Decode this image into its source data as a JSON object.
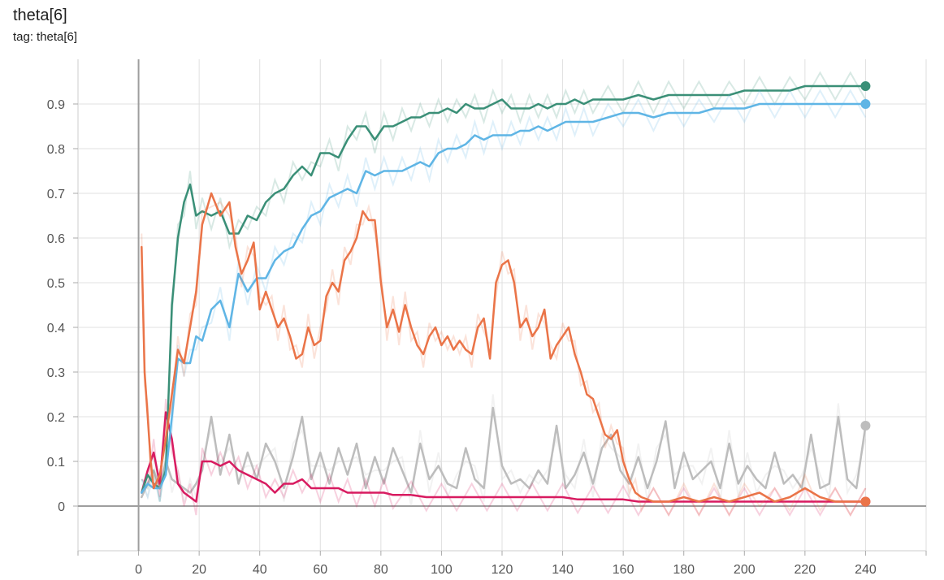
{
  "card": {
    "title": "theta[6]",
    "tag_prefix": "tag:",
    "tag_value": "theta[6]"
  },
  "chart_data": {
    "type": "line",
    "title": "theta[6]",
    "xlabel": "",
    "ylabel": "",
    "xlim": [
      -20,
      260
    ],
    "ylim": [
      -0.1,
      1.0
    ],
    "x_ticks": [
      0,
      20,
      40,
      60,
      80,
      100,
      120,
      140,
      160,
      180,
      200,
      220,
      240
    ],
    "y_ticks": [
      0,
      0.1,
      0.2,
      0.3,
      0.4,
      0.5,
      0.6,
      0.7,
      0.8,
      0.9
    ],
    "x_tick_labels": [
      "0",
      "20",
      "40",
      "60",
      "80",
      "100",
      "120",
      "140",
      "160",
      "180",
      "200",
      "220",
      "240"
    ],
    "y_tick_labels": [
      "0",
      "0.1",
      "0.2",
      "0.3",
      "0.4",
      "0.5",
      "0.6",
      "0.7",
      "0.8",
      "0.9"
    ],
    "grid": true,
    "legend": "none",
    "series": [
      {
        "color": "#bdbdbd",
        "smoothed": false,
        "x": [
          1,
          3,
          5,
          7,
          9,
          11,
          13,
          15,
          17,
          19,
          21,
          24,
          27,
          30,
          33,
          36,
          39,
          42,
          45,
          48,
          51,
          54,
          57,
          60,
          63,
          66,
          69,
          72,
          75,
          78,
          81,
          84,
          87,
          90,
          93,
          96,
          99,
          102,
          105,
          108,
          111,
          114,
          117,
          120,
          123,
          126,
          129,
          132,
          135,
          138,
          141,
          144,
          147,
          150,
          153,
          156,
          159,
          162,
          165,
          168,
          171,
          174,
          177,
          180,
          183,
          186,
          189,
          192,
          195,
          198,
          201,
          204,
          207,
          210,
          213,
          216,
          219,
          222,
          225,
          228,
          231,
          234,
          237,
          240
        ],
        "y": [
          0.02,
          0.05,
          0.08,
          0.04,
          0.1,
          0.06,
          0.05,
          0.04,
          0.03,
          0.05,
          0.08,
          0.2,
          0.07,
          0.16,
          0.05,
          0.12,
          0.06,
          0.14,
          0.1,
          0.04,
          0.11,
          0.2,
          0.06,
          0.12,
          0.05,
          0.13,
          0.07,
          0.14,
          0.04,
          0.11,
          0.05,
          0.13,
          0.08,
          0.03,
          0.14,
          0.06,
          0.09,
          0.05,
          0.04,
          0.13,
          0.06,
          0.04,
          0.22,
          0.09,
          0.05,
          0.06,
          0.04,
          0.08,
          0.05,
          0.18,
          0.04,
          0.07,
          0.12,
          0.05,
          0.13,
          0.16,
          0.08,
          0.05,
          0.11,
          0.04,
          0.1,
          0.19,
          0.04,
          0.12,
          0.06,
          0.08,
          0.1,
          0.04,
          0.14,
          0.05,
          0.09,
          0.06,
          0.04,
          0.12,
          0.05,
          0.07,
          0.04,
          0.16,
          0.04,
          0.05,
          0.2,
          0.06,
          0.04,
          0.18
        ]
      },
      {
        "color": "#d81b60",
        "smoothed": false,
        "x": [
          1,
          3,
          5,
          7,
          9,
          11,
          13,
          15,
          17,
          19,
          21,
          24,
          27,
          30,
          33,
          36,
          39,
          42,
          45,
          48,
          51,
          54,
          57,
          60,
          63,
          66,
          69,
          72,
          75,
          78,
          81,
          84,
          90,
          95,
          100,
          105,
          110,
          115,
          120,
          125,
          130,
          135,
          140,
          145,
          150,
          155,
          160,
          165,
          170,
          175,
          180,
          185,
          190,
          195,
          200,
          205,
          210,
          215,
          220,
          225,
          230,
          235,
          240
        ],
        "y": [
          0.03,
          0.08,
          0.12,
          0.05,
          0.21,
          0.15,
          0.05,
          0.03,
          0.02,
          0.01,
          0.1,
          0.1,
          0.09,
          0.1,
          0.08,
          0.07,
          0.06,
          0.05,
          0.03,
          0.05,
          0.05,
          0.06,
          0.04,
          0.04,
          0.04,
          0.04,
          0.03,
          0.03,
          0.03,
          0.03,
          0.03,
          0.025,
          0.025,
          0.02,
          0.02,
          0.02,
          0.02,
          0.02,
          0.02,
          0.02,
          0.02,
          0.02,
          0.02,
          0.015,
          0.015,
          0.015,
          0.015,
          0.01,
          0.01,
          0.01,
          0.01,
          0.01,
          0.01,
          0.01,
          0.01,
          0.01,
          0.01,
          0.01,
          0.01,
          0.01,
          0.01,
          0.01,
          0.01
        ]
      },
      {
        "color": "#3a8f77",
        "smoothed": false,
        "x": [
          1,
          3,
          5,
          7,
          9,
          11,
          13,
          15,
          17,
          19,
          21,
          24,
          27,
          30,
          33,
          36,
          39,
          42,
          45,
          48,
          51,
          54,
          57,
          60,
          63,
          66,
          69,
          72,
          75,
          78,
          81,
          84,
          87,
          90,
          93,
          96,
          99,
          102,
          105,
          108,
          111,
          114,
          117,
          120,
          123,
          126,
          129,
          132,
          135,
          138,
          141,
          144,
          147,
          150,
          155,
          160,
          165,
          170,
          175,
          180,
          185,
          190,
          195,
          200,
          205,
          210,
          215,
          220,
          225,
          230,
          235,
          240
        ],
        "y": [
          0.03,
          0.07,
          0.05,
          0.04,
          0.08,
          0.45,
          0.6,
          0.68,
          0.72,
          0.65,
          0.66,
          0.65,
          0.66,
          0.61,
          0.61,
          0.65,
          0.64,
          0.68,
          0.7,
          0.71,
          0.74,
          0.76,
          0.74,
          0.79,
          0.79,
          0.78,
          0.82,
          0.85,
          0.85,
          0.82,
          0.85,
          0.85,
          0.86,
          0.87,
          0.87,
          0.88,
          0.88,
          0.89,
          0.88,
          0.9,
          0.89,
          0.89,
          0.9,
          0.91,
          0.89,
          0.89,
          0.89,
          0.9,
          0.89,
          0.9,
          0.9,
          0.91,
          0.9,
          0.91,
          0.91,
          0.91,
          0.92,
          0.91,
          0.92,
          0.92,
          0.92,
          0.92,
          0.92,
          0.93,
          0.93,
          0.93,
          0.93,
          0.94,
          0.94,
          0.94,
          0.94,
          0.94
        ]
      },
      {
        "color": "#5fb5e5",
        "smoothed": false,
        "x": [
          1,
          3,
          5,
          7,
          9,
          11,
          13,
          15,
          17,
          19,
          21,
          24,
          27,
          30,
          33,
          36,
          39,
          42,
          45,
          48,
          51,
          54,
          57,
          60,
          63,
          66,
          69,
          72,
          75,
          78,
          81,
          84,
          87,
          90,
          93,
          96,
          99,
          102,
          105,
          108,
          111,
          114,
          117,
          120,
          123,
          126,
          129,
          132,
          135,
          138,
          141,
          144,
          147,
          150,
          155,
          160,
          165,
          170,
          175,
          180,
          185,
          190,
          195,
          200,
          205,
          210,
          215,
          220,
          225,
          230,
          235,
          240
        ],
        "y": [
          0.03,
          0.05,
          0.04,
          0.04,
          0.07,
          0.2,
          0.33,
          0.32,
          0.32,
          0.38,
          0.37,
          0.44,
          0.46,
          0.4,
          0.52,
          0.48,
          0.51,
          0.51,
          0.55,
          0.57,
          0.58,
          0.62,
          0.65,
          0.66,
          0.69,
          0.7,
          0.71,
          0.7,
          0.75,
          0.74,
          0.75,
          0.75,
          0.75,
          0.76,
          0.77,
          0.76,
          0.79,
          0.8,
          0.8,
          0.81,
          0.83,
          0.82,
          0.83,
          0.83,
          0.83,
          0.84,
          0.84,
          0.85,
          0.84,
          0.85,
          0.86,
          0.86,
          0.86,
          0.86,
          0.87,
          0.88,
          0.88,
          0.87,
          0.88,
          0.88,
          0.88,
          0.89,
          0.89,
          0.89,
          0.9,
          0.9,
          0.9,
          0.9,
          0.9,
          0.9,
          0.9,
          0.9
        ]
      },
      {
        "color": "#ea7448",
        "smoothed": false,
        "x": [
          1,
          2,
          3,
          4,
          5,
          7,
          9,
          11,
          13,
          15,
          17,
          19,
          21,
          24,
          27,
          30,
          32,
          34,
          36,
          38,
          40,
          42,
          44,
          46,
          48,
          50,
          52,
          54,
          56,
          58,
          60,
          62,
          64,
          66,
          68,
          70,
          72,
          74,
          76,
          78,
          80,
          82,
          84,
          86,
          88,
          90,
          92,
          94,
          96,
          98,
          100,
          102,
          104,
          106,
          108,
          110,
          112,
          114,
          116,
          118,
          120,
          122,
          124,
          126,
          128,
          130,
          132,
          134,
          136,
          138,
          140,
          142,
          144,
          146,
          148,
          150,
          152,
          154,
          156,
          158,
          160,
          162,
          164,
          166,
          170,
          175,
          180,
          185,
          190,
          195,
          200,
          205,
          210,
          215,
          220,
          225,
          230,
          235,
          240
        ],
        "y": [
          0.58,
          0.3,
          0.2,
          0.1,
          0.04,
          0.07,
          0.15,
          0.25,
          0.35,
          0.32,
          0.4,
          0.48,
          0.63,
          0.7,
          0.65,
          0.68,
          0.58,
          0.52,
          0.55,
          0.59,
          0.44,
          0.48,
          0.44,
          0.4,
          0.42,
          0.38,
          0.33,
          0.34,
          0.4,
          0.36,
          0.37,
          0.47,
          0.5,
          0.48,
          0.55,
          0.57,
          0.6,
          0.66,
          0.64,
          0.64,
          0.5,
          0.4,
          0.44,
          0.39,
          0.45,
          0.4,
          0.36,
          0.34,
          0.38,
          0.4,
          0.36,
          0.38,
          0.35,
          0.37,
          0.35,
          0.34,
          0.4,
          0.42,
          0.33,
          0.5,
          0.54,
          0.55,
          0.5,
          0.4,
          0.42,
          0.38,
          0.4,
          0.44,
          0.33,
          0.36,
          0.38,
          0.4,
          0.34,
          0.3,
          0.25,
          0.24,
          0.2,
          0.16,
          0.15,
          0.17,
          0.1,
          0.06,
          0.03,
          0.02,
          0.01,
          0.01,
          0.02,
          0.01,
          0.02,
          0.01,
          0.02,
          0.03,
          0.01,
          0.02,
          0.04,
          0.02,
          0.01,
          0.01,
          0.01
        ]
      }
    ]
  }
}
